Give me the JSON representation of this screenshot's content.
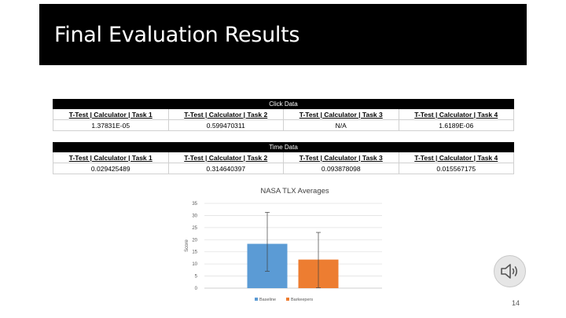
{
  "slide": {
    "title": "Final Evaluation Results",
    "page_number": "14"
  },
  "click_table": {
    "caption": "Click Data",
    "headers": [
      "T-Test | Calculator | Task 1",
      "T-Test | Calculator | Task 2",
      "T-Test | Calculator | Task 3",
      "T-Test | Calculator | Task 4"
    ],
    "values": [
      "1.37831E-05",
      "0.599470311",
      "N/A",
      "1.6189E-06"
    ]
  },
  "time_table": {
    "caption": "Time Data",
    "headers": [
      "T-Test | Calculator | Task 1",
      "T-Test | Calculator | Task 2",
      "T-Test | Calculator | Task 3",
      "T-Test | Calculator | Task 4"
    ],
    "values": [
      "0.029425489",
      "0.314640397",
      "0.093878098",
      "0.015567175"
    ]
  },
  "speaker": {
    "icon": "speaker-audio-icon"
  },
  "chart_data": {
    "type": "bar",
    "title": "NASA TLX Averages",
    "xlabel": "",
    "ylabel": "Score",
    "ylim": [
      0,
      35
    ],
    "yticks": [
      0,
      5,
      10,
      15,
      20,
      25,
      30,
      35
    ],
    "grid": true,
    "legend_position": "bottom",
    "categories": [
      "Baseline",
      "Barkeepers"
    ],
    "values": [
      18.3,
      11.8
    ],
    "error_bars": [
      {
        "low": 7.0,
        "high": 31.3
      },
      {
        "low": 0.2,
        "high": 23.0
      }
    ],
    "colors": [
      "#5B9BD5",
      "#ED7D31"
    ],
    "legend": [
      "Baseline",
      "Barkeepers"
    ]
  }
}
